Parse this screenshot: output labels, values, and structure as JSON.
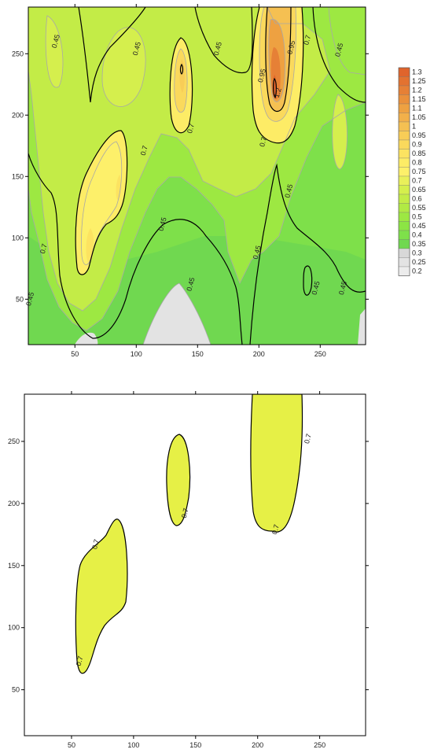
{
  "chart_data": [
    {
      "type": "contour",
      "title": "",
      "xlabel": "",
      "ylabel": "",
      "xlim": [
        12,
        287
      ],
      "ylim": [
        13,
        288
      ],
      "x_ticks": [
        50,
        100,
        150,
        200,
        250
      ],
      "y_ticks": [
        50,
        100,
        150,
        200,
        250
      ],
      "x_tick_labels": [
        "50",
        "100",
        "150",
        "200",
        "250"
      ],
      "y_tick_labels": [
        "50",
        "100",
        "150",
        "200",
        "250"
      ],
      "filled": true,
      "contour_levels": [
        0.2,
        0.25,
        0.3,
        0.35,
        0.4,
        0.45,
        0.5,
        0.55,
        0.6,
        0.65,
        0.7,
        0.75,
        0.8,
        0.85,
        0.9,
        0.95,
        1,
        1.05,
        1.1,
        1.15,
        1.2,
        1.25,
        1.3
      ],
      "highlighted_levels": [
        0.45,
        0.7,
        0.95,
        1.2
      ],
      "colorbar": {
        "position": "right",
        "labels": [
          "1.3",
          "1.25",
          "1.2",
          "1.15",
          "1.1",
          "1.05",
          "1",
          "0.95",
          "0.9",
          "0.85",
          "0.8",
          "0.75",
          "0.7",
          "0.65",
          "0.6",
          "0.55",
          "0.5",
          "0.45",
          "0.4",
          "0.35",
          "0.3",
          "0.25",
          "0.2"
        ],
        "colors": [
          "#e0642c",
          "#e37230",
          "#e68036",
          "#ea903b",
          "#eea141",
          "#f2b04a",
          "#f5c052",
          "#f8cd57",
          "#fad95c",
          "#fce361",
          "#fdec66",
          "#fdf06a",
          "#e9f05a",
          "#d5ef4d",
          "#c3ec47",
          "#b1ea44",
          "#9de842",
          "#8ce544",
          "#7ee04a",
          "#70d850",
          "#d8d8d8",
          "#e3e3e3",
          "#ececec"
        ]
      },
      "peaks": [
        {
          "x": 68,
          "y": 110,
          "value": 0.78
        },
        {
          "x": 88,
          "y": 142,
          "value": 0.78
        },
        {
          "x": 137,
          "y": 228,
          "value": 0.86
        },
        {
          "x": 213,
          "y": 222,
          "value": 1.28
        }
      ],
      "contour_labels": [
        {
          "text": "0.45",
          "x": 35,
          "y": 260
        },
        {
          "text": "0.45",
          "x": 101,
          "y": 254
        },
        {
          "text": "0.45",
          "x": 167,
          "y": 254
        },
        {
          "text": "0.45",
          "x": 266,
          "y": 253
        },
        {
          "text": "0.7",
          "x": 240,
          "y": 261
        },
        {
          "text": "0.95",
          "x": 227,
          "y": 255
        },
        {
          "text": "0.95",
          "x": 203,
          "y": 232
        },
        {
          "text": "1.2",
          "x": 216,
          "y": 218
        },
        {
          "text": "0.7",
          "x": 145,
          "y": 189
        },
        {
          "text": "0.7",
          "x": 204,
          "y": 178
        },
        {
          "text": "0.7",
          "x": 107,
          "y": 171
        },
        {
          "text": "0.45",
          "x": 225,
          "y": 138
        },
        {
          "text": "0.45",
          "x": 122,
          "y": 111
        },
        {
          "text": "0.7",
          "x": 25,
          "y": 91
        },
        {
          "text": "0.45",
          "x": 199,
          "y": 88
        },
        {
          "text": "0.45",
          "x": 145,
          "y": 62
        },
        {
          "text": "0.45",
          "x": 269,
          "y": 59
        },
        {
          "text": "0.45",
          "x": 247,
          "y": 59
        },
        {
          "text": "0.45",
          "x": 14,
          "y": 50
        }
      ]
    },
    {
      "type": "contour",
      "title": "",
      "xlabel": "",
      "ylabel": "",
      "xlim": [
        12,
        287
      ],
      "ylim": [
        13,
        288
      ],
      "x_ticks": [
        50,
        100,
        150,
        200,
        250
      ],
      "y_ticks": [
        50,
        100,
        150,
        200,
        250
      ],
      "x_tick_labels": [
        "50",
        "100",
        "150",
        "200",
        "250"
      ],
      "y_tick_labels": [
        "50",
        "100",
        "150",
        "200",
        "250"
      ],
      "filled": true,
      "contour_levels": [
        0.7
      ],
      "fill_color": "#e6f046",
      "regions": [
        {
          "name": "left",
          "above_level": 0.7
        },
        {
          "name": "middle",
          "above_level": 0.7
        },
        {
          "name": "right",
          "above_level": 0.7
        }
      ],
      "contour_labels": [
        {
          "text": "0.7",
          "x": 70,
          "y": 167
        },
        {
          "text": "0.7",
          "x": 57,
          "y": 73
        },
        {
          "text": "0.7",
          "x": 142,
          "y": 192
        },
        {
          "text": "0.7",
          "x": 241,
          "y": 252
        },
        {
          "text": "0.7",
          "x": 215,
          "y": 179
        }
      ]
    }
  ]
}
